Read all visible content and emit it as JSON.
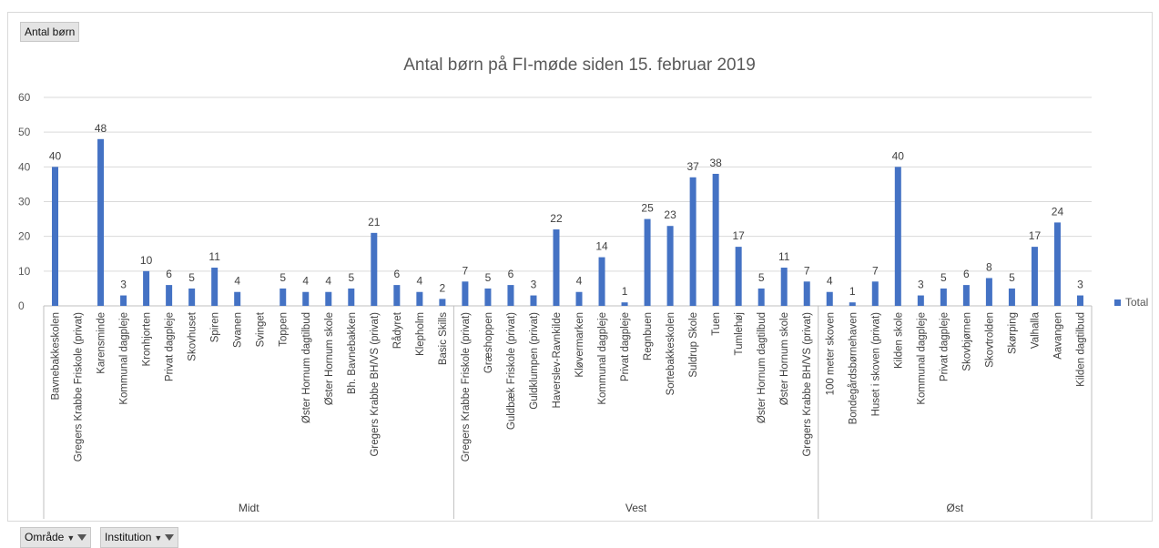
{
  "field_buttons": {
    "value_field": "Antal børn",
    "row_field_1": "Område",
    "row_field_2": "Institution"
  },
  "chart_data": {
    "type": "bar",
    "title": "Antal børn på FI-møde siden 15. februar 2019",
    "xlabel": "",
    "ylabel": "",
    "ylim": [
      0,
      60
    ],
    "yticks": [
      0,
      10,
      20,
      30,
      40,
      50,
      60
    ],
    "grid": true,
    "legend_position": "right",
    "series": [
      {
        "name": "Total",
        "color": "#4472C4"
      }
    ],
    "groups": [
      {
        "name": "Midt",
        "items": [
          {
            "label": "Bavnebakkeskolen",
            "value": 40
          },
          {
            "label": "Gregers Krabbe Friskole (privat)",
            "value": null
          },
          {
            "label": "Karensminde",
            "value": 48
          },
          {
            "label": "Kommunal dagpleje",
            "value": 3
          },
          {
            "label": "Kronhjorten",
            "value": 10
          },
          {
            "label": "Privat dagpleje",
            "value": 6
          },
          {
            "label": "Skovhuset",
            "value": 5
          },
          {
            "label": "Spiren",
            "value": 11
          },
          {
            "label": "Svanen",
            "value": 4
          },
          {
            "label": "Svinget",
            "value": null
          },
          {
            "label": "Toppen",
            "value": 5
          },
          {
            "label": "Øster Hornum dagtilbud",
            "value": 4
          },
          {
            "label": "Øster Hornum skole",
            "value": 4
          },
          {
            "label": "Bh. Bavnebakken",
            "value": 5
          },
          {
            "label": "Gregers Krabbe BH/VS (privat)",
            "value": 21
          },
          {
            "label": "Rådyret",
            "value": 6
          },
          {
            "label": "Klepholm",
            "value": 4
          },
          {
            "label": "Basic Skills",
            "value": 2
          }
        ]
      },
      {
        "name": "Vest",
        "items": [
          {
            "label": "Gregers Krabbe Friskole (privat)",
            "value": 7
          },
          {
            "label": "Græshoppen",
            "value": 5
          },
          {
            "label": "Guldbæk Friskole (privat)",
            "value": 6
          },
          {
            "label": "Guldklumpen (privat)",
            "value": 3
          },
          {
            "label": "Haverslev-Ravnkilde",
            "value": 22
          },
          {
            "label": "Kløvermarken",
            "value": 4
          },
          {
            "label": "Kommunal dagpleje",
            "value": 14
          },
          {
            "label": "Privat dagpleje",
            "value": 1
          },
          {
            "label": "Regnbuen",
            "value": 25
          },
          {
            "label": "Sortebakkeskolen",
            "value": 23
          },
          {
            "label": "Suldrup Skole",
            "value": 37
          },
          {
            "label": "Tuen",
            "value": 38
          },
          {
            "label": "Tumlehøj",
            "value": 17
          },
          {
            "label": "Øster Hornum dagtilbud",
            "value": 5
          },
          {
            "label": "Øster Hornum skole",
            "value": 11
          },
          {
            "label": "Gregers Krabbe BH/VS (privat)",
            "value": 7
          }
        ]
      },
      {
        "name": "Øst",
        "items": [
          {
            "label": "100 meter skoven",
            "value": 4
          },
          {
            "label": "Bondegårdsbørnehaven",
            "value": 1
          },
          {
            "label": "Huset i skoven (privat)",
            "value": 7
          },
          {
            "label": "Kilden skole",
            "value": 40
          },
          {
            "label": "Kommunal dagpleje",
            "value": 3
          },
          {
            "label": "Privat dagpleje",
            "value": 5
          },
          {
            "label": "Skovbjørnen",
            "value": 6
          },
          {
            "label": "Skovtrolden",
            "value": 8
          },
          {
            "label": "Skørping",
            "value": 5
          },
          {
            "label": "Valhalla",
            "value": 17
          },
          {
            "label": "Aavangen",
            "value": 24
          },
          {
            "label": "Kilden dagtilbud",
            "value": 3
          }
        ]
      }
    ]
  }
}
